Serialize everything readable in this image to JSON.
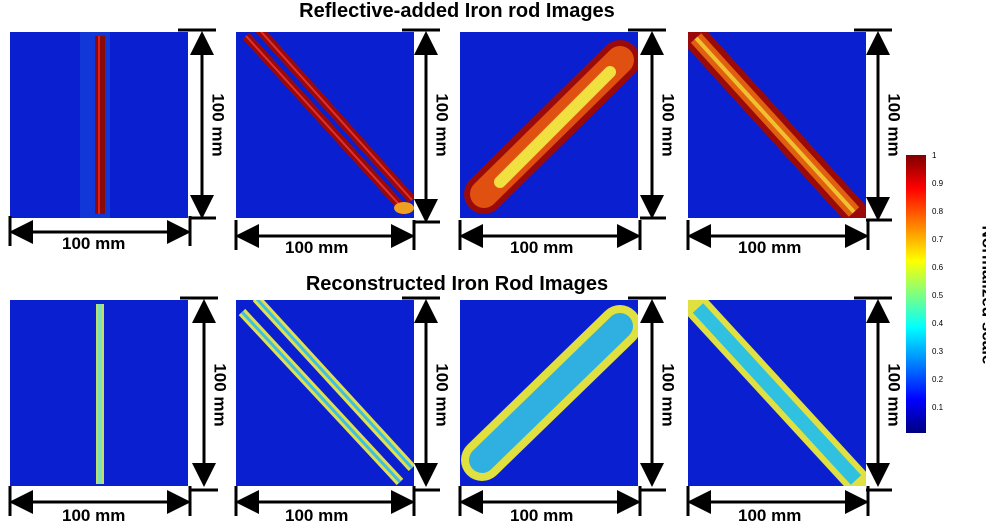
{
  "titles": {
    "top": "Reflective-added Iron rod Images",
    "bottom": "Reconstructed Iron Rod Images"
  },
  "dimension_label": "100 mm",
  "colorbar": {
    "title": "Normalized scale",
    "ticks": [
      "1",
      "0.9",
      "0.8",
      "0.7",
      "0.6",
      "0.5",
      "0.4",
      "0.3",
      "0.2",
      "0.1"
    ]
  },
  "colors": {
    "background_blue": "#0a1fd0",
    "rod_red": "#b01010",
    "rod_yellow": "#f0e040",
    "rod_cyan": "#30d0e0"
  }
}
